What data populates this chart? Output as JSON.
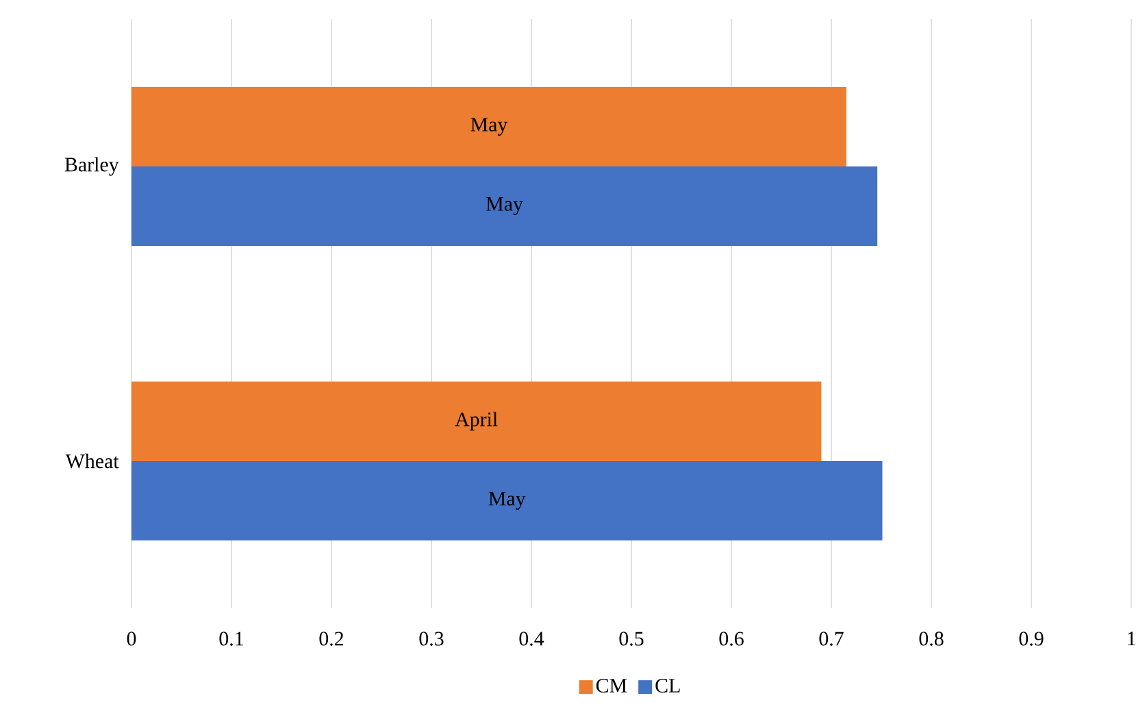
{
  "chart_data": {
    "type": "bar",
    "orientation": "horizontal",
    "categories": [
      "Barley",
      "Wheat"
    ],
    "series": [
      {
        "name": "CM",
        "color": "#ed7d31",
        "values": [
          0.715,
          0.69
        ],
        "value_labels": [
          "May",
          "April"
        ]
      },
      {
        "name": "CL",
        "color": "#4472c4",
        "values": [
          0.746,
          0.751
        ],
        "value_labels": [
          "May",
          "May"
        ]
      }
    ],
    "xlim": [
      0,
      1
    ],
    "xticks": [
      0,
      0.1,
      0.2,
      0.3,
      0.4,
      0.5,
      0.6,
      0.7,
      0.8,
      0.9,
      1
    ],
    "grid": "x",
    "legend": "bottom"
  }
}
